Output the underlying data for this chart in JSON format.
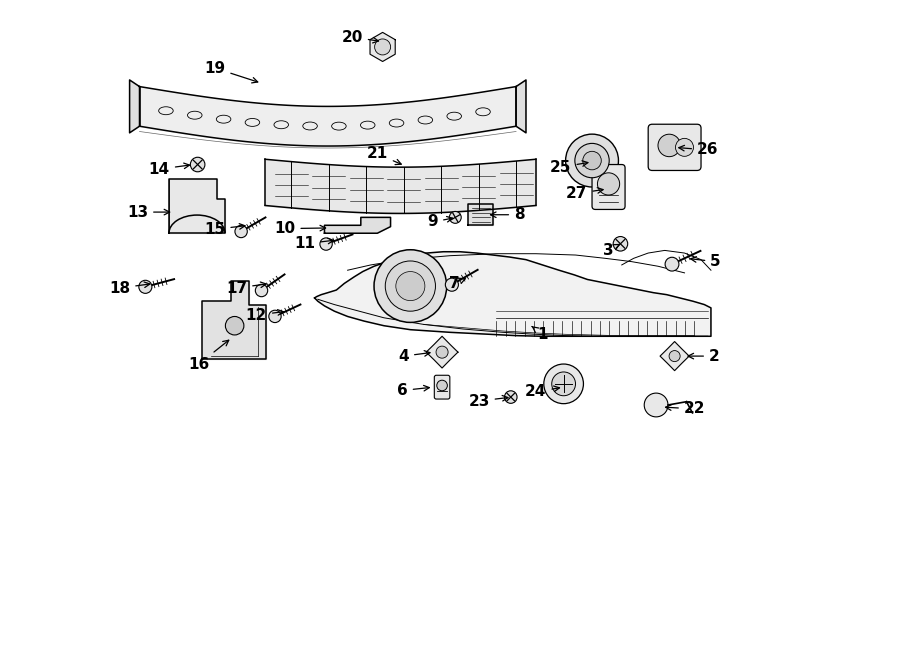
{
  "bg_color": "#ffffff",
  "line_color": "#000000",
  "fig_width": 9.0,
  "fig_height": 6.62,
  "dpi": 100,
  "text_fontsize": 11,
  "text_fontweight": "bold"
}
